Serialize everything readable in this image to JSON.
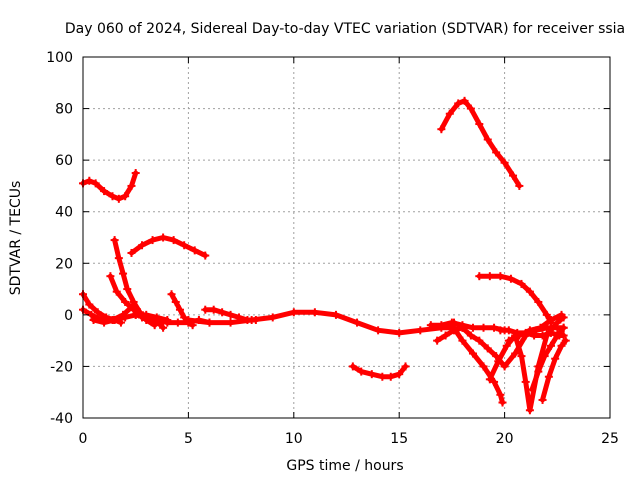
{
  "chart_data": {
    "type": "scatter",
    "title": "Day 060 of 2024, Sidereal Day-to-day VTEC variation (SDTVAR) for receiver ssia",
    "xlabel": "GPS time / hours",
    "ylabel": "SDTVAR / TECUs",
    "xlim": [
      0,
      25
    ],
    "ylim": [
      -40,
      100
    ],
    "x_ticks": [
      0,
      5,
      10,
      15,
      20,
      25
    ],
    "y_ticks": [
      -40,
      -20,
      0,
      20,
      40,
      60,
      80,
      100
    ],
    "x_tick_labels": [
      "0",
      "5",
      "10",
      "15",
      "20",
      "25"
    ],
    "y_tick_labels": [
      "-40",
      "-20",
      "0",
      "20",
      "40",
      "60",
      "80",
      "100"
    ],
    "grid": true,
    "legend": "none",
    "marker": "+",
    "color": "#ff0000",
    "series": [
      {
        "x": [
          0.0,
          0.3,
          0.6,
          1.0,
          1.4,
          1.7,
          2.0,
          2.3,
          2.5
        ],
        "y": [
          51,
          52,
          51,
          48,
          46,
          45,
          46,
          50,
          55
        ]
      },
      {
        "x": [
          2.3,
          2.8,
          3.3,
          3.8,
          4.3,
          4.8,
          5.3,
          5.8
        ],
        "y": [
          24,
          27,
          29,
          30,
          29,
          27,
          25,
          23
        ]
      },
      {
        "x": [
          1.5,
          1.7,
          1.9,
          2.1,
          2.4,
          2.7,
          3.0,
          3.4
        ],
        "y": [
          29,
          22,
          16,
          10,
          5,
          1,
          -2,
          -4
        ]
      },
      {
        "x": [
          1.3,
          1.6,
          2.0,
          2.4,
          2.8,
          3.2,
          3.6,
          3.8
        ],
        "y": [
          15,
          9,
          5,
          2,
          -1,
          -2,
          -3,
          -5
        ]
      },
      {
        "x": [
          0.0,
          0.3,
          0.7,
          1.1,
          1.5,
          1.8
        ],
        "y": [
          8,
          4,
          1,
          -1,
          -2,
          -3
        ]
      },
      {
        "x": [
          0.0,
          0.4,
          0.9,
          1.4,
          1.9,
          2.3
        ],
        "y": [
          2,
          0,
          -2,
          -2,
          0,
          3
        ]
      },
      {
        "x": [
          0.5,
          1.0,
          1.5,
          2.0,
          2.5,
          3.0,
          3.5,
          4.0
        ],
        "y": [
          -2,
          -3,
          -2,
          -1,
          0,
          0,
          -1,
          -2
        ]
      },
      {
        "x": [
          4.2,
          4.4,
          4.6,
          4.8,
          5.0,
          5.2
        ],
        "y": [
          8,
          5,
          2,
          -1,
          -3,
          -4
        ]
      },
      {
        "x": [
          2.5,
          3.0,
          3.5,
          4.0,
          4.5,
          5.0,
          5.5,
          6.0
        ],
        "y": [
          0,
          -1,
          -2,
          -3,
          -3,
          -3,
          -2,
          -3
        ]
      },
      {
        "x": [
          5.8,
          6.2,
          6.6,
          7.0,
          7.4,
          7.8,
          8.2
        ],
        "y": [
          2,
          2,
          1,
          0,
          -1,
          -2,
          -2
        ]
      },
      {
        "x": [
          5.0,
          6.0,
          7.0,
          8.0,
          9.0,
          10.0,
          11.0,
          12.0,
          13.0,
          14.0,
          15.0,
          16.0,
          17.0,
          17.5
        ],
        "y": [
          -2,
          -3,
          -3,
          -2,
          -1,
          1,
          1,
          0,
          -3,
          -6,
          -7,
          -6,
          -5,
          -5
        ]
      },
      {
        "x": [
          12.8,
          13.2,
          13.7,
          14.2,
          14.6,
          15.0,
          15.3
        ],
        "y": [
          -20,
          -22,
          -23,
          -24,
          -24,
          -23,
          -20
        ]
      },
      {
        "x": [
          17.0,
          17.4,
          17.8,
          18.1,
          18.4,
          18.8,
          19.2,
          19.6,
          20.0,
          20.4,
          20.7
        ],
        "y": [
          72,
          78,
          82,
          83,
          80,
          74,
          68,
          63,
          59,
          54,
          50
        ]
      },
      {
        "x": [
          18.8,
          19.3,
          19.8,
          20.3,
          20.8,
          21.2,
          21.6,
          22.0,
          22.2
        ],
        "y": [
          15,
          15,
          15,
          14,
          12,
          9,
          5,
          0,
          -3
        ]
      },
      {
        "x": [
          16.5,
          17.0,
          17.5,
          18.0,
          18.5,
          19.0,
          19.5,
          20.0
        ],
        "y": [
          -4,
          -4,
          -3,
          -4,
          -5,
          -5,
          -5,
          -6
        ]
      },
      {
        "x": [
          16.8,
          17.2,
          17.6,
          18.0
        ],
        "y": [
          -10,
          -8,
          -6,
          -5
        ]
      },
      {
        "x": [
          17.6,
          18.0,
          18.4,
          18.8,
          19.2,
          19.6,
          20.0,
          20.5,
          21.0,
          21.5,
          22.0,
          22.5,
          22.8
        ],
        "y": [
          -3,
          -5,
          -8,
          -10,
          -13,
          -16,
          -20,
          -15,
          -8,
          -6,
          -5,
          -5,
          -5
        ]
      },
      {
        "x": [
          17.5,
          18.0,
          18.5,
          19.0,
          19.5,
          19.8,
          19.9
        ],
        "y": [
          -4,
          -10,
          -15,
          -20,
          -26,
          -31,
          -34
        ]
      },
      {
        "x": [
          19.3,
          19.7,
          20.1,
          20.5,
          20.8,
          21.0,
          21.2,
          21.6,
          22.0,
          22.5,
          22.8
        ],
        "y": [
          -25,
          -18,
          -12,
          -8,
          -16,
          -26,
          -37,
          -20,
          -8,
          -3,
          -1
        ]
      },
      {
        "x": [
          19.8,
          20.2,
          20.6,
          21.0,
          21.4,
          21.8,
          22.2,
          22.6,
          22.8
        ],
        "y": [
          -6,
          -6,
          -7,
          -7,
          -8,
          -8,
          -7,
          -8,
          -8
        ]
      },
      {
        "x": [
          21.3,
          21.6,
          21.9,
          22.2,
          22.5,
          22.8
        ],
        "y": [
          -29,
          -22,
          -16,
          -12,
          -8,
          -5
        ]
      },
      {
        "x": [
          21.8,
          22.1,
          22.4,
          22.7,
          22.9
        ],
        "y": [
          -33,
          -24,
          -17,
          -12,
          -10
        ]
      },
      {
        "x": [
          20.2,
          20.7,
          21.2,
          21.7,
          22.2,
          22.7
        ],
        "y": [
          -10,
          -8,
          -6,
          -5,
          -2,
          0
        ]
      }
    ]
  }
}
